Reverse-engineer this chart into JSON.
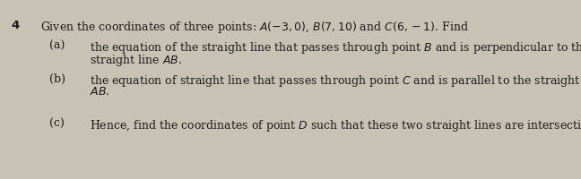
{
  "background_color": "#c8c2b5",
  "number": "4",
  "intro_line": "Given the coordinates of three points: $A(-3, 0)$, $B(7, 10)$ and $C(6, -1)$. Find",
  "parts": [
    {
      "label": "(a)",
      "lines": [
        "the equation of the straight line that passes through point $B$ and is perpendicular to the",
        "straight line $AB$."
      ]
    },
    {
      "label": "(b)",
      "lines": [
        "the equation of straight line that passes through point $C$ and is parallel to the straight line",
        "$AB$."
      ]
    },
    {
      "label": "(c)",
      "lines": [
        "Hence, find the coordinates of point $D$ such that these two straight lines are intersecting."
      ]
    }
  ],
  "font_size_intro": 9.0,
  "font_size_parts": 9.0,
  "font_size_number": 9.5,
  "text_color": "#1c1c1c",
  "figwidth": 6.48,
  "figheight": 2.0,
  "dpi": 100
}
